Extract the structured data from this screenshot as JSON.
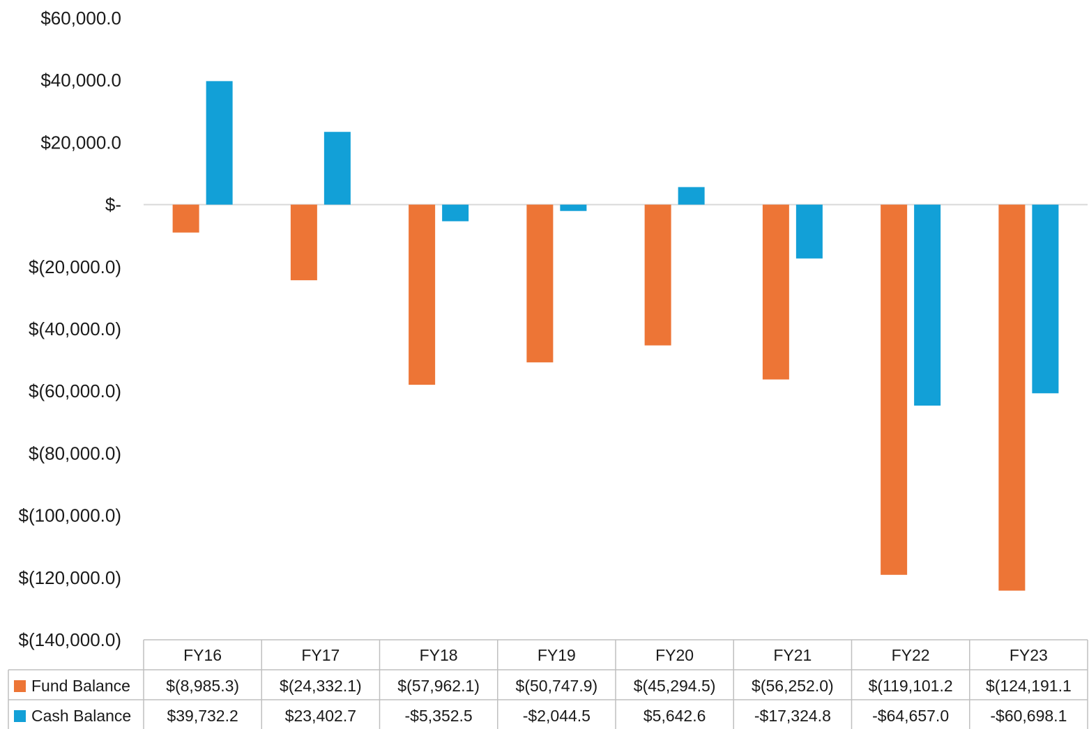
{
  "chart_data": {
    "type": "bar",
    "categories": [
      "FY16",
      "FY17",
      "FY18",
      "FY19",
      "FY20",
      "FY21",
      "FY22",
      "FY23"
    ],
    "series": [
      {
        "name": "Fund Balance",
        "color": "#ED7536",
        "values": [
          -8985.3,
          -24332.1,
          -57962.1,
          -50747.9,
          -45294.5,
          -56252.0,
          -119101.2,
          -124191.1
        ],
        "table_labels": [
          "$(8,985.3)",
          "$(24,332.1)",
          "$(57,962.1)",
          "$(50,747.9)",
          "$(45,294.5)",
          "$(56,252.0)",
          "$(119,101.2",
          "$(124,191.1"
        ]
      },
      {
        "name": "Cash Balance",
        "color": "#12A0D7",
        "values": [
          39732.2,
          23402.7,
          -5352.5,
          -2044.5,
          5642.6,
          -17324.8,
          -64657.0,
          -60698.1
        ],
        "table_labels": [
          "$39,732.2",
          "$23,402.7",
          "-$5,352.5",
          "-$2,044.5",
          "$5,642.6",
          "-$17,324.8",
          "-$64,657.0",
          "-$60,698.1"
        ]
      }
    ],
    "ylim": [
      -140000,
      60000
    ],
    "yticks": [
      60000,
      40000,
      20000,
      0,
      -20000,
      -40000,
      -60000,
      -80000,
      -100000,
      -120000,
      -140000
    ],
    "ytick_labels": [
      "$60,000.0",
      "$40,000.0",
      "$20,000.0",
      "$-",
      "$(20,000.0)",
      "$(40,000.0)",
      "$(60,000.0)",
      "$(80,000.0)",
      "$(100,000.0)",
      "$(120,000.0)",
      "$(140,000.0)"
    ],
    "grid": false,
    "legend": "data-table"
  }
}
